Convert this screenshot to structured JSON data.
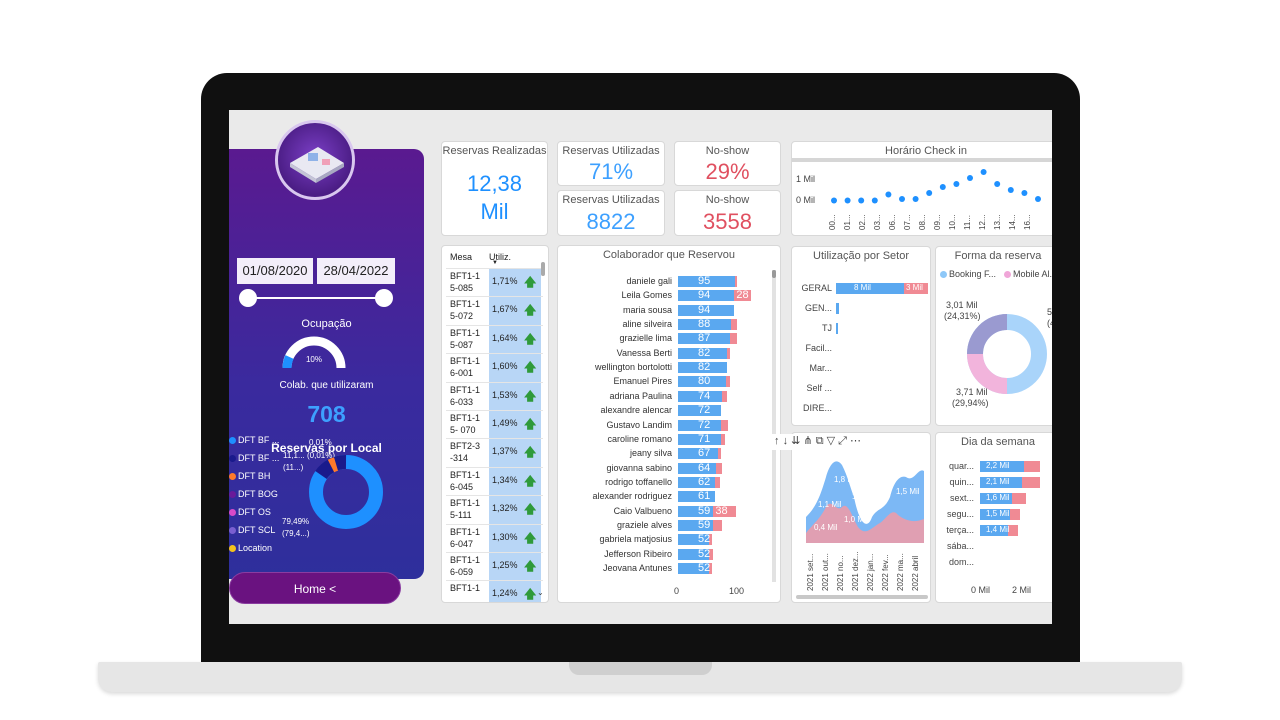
{
  "sidebar": {
    "date_start": "01/08/2020",
    "date_end": "28/04/2022",
    "ocupacao_label": "Ocupação",
    "ocupacao_value": "10%",
    "colab_label": "Colab. que utilizaram",
    "colab_value": "708",
    "reservas_local_label": "Reservas por Local",
    "legend": [
      {
        "label": "DFT BF ...",
        "color": "#1e90ff"
      },
      {
        "label": "DFT BF ...",
        "color": "#1a1a8c"
      },
      {
        "label": "DFT BH",
        "color": "#ff7a2a"
      },
      {
        "label": "DFT BOG",
        "color": "#6a1a9a"
      },
      {
        "label": "DFT OS",
        "color": "#d84ac8"
      },
      {
        "label": "DFT SCL",
        "color": "#7a5fd0"
      },
      {
        "label": "Location",
        "color": "#f4c21c"
      }
    ],
    "donut_labels": {
      "a": "0,01%",
      "b": "11,1...",
      "c": "(0,01%)",
      "d": "(11...)",
      "e": "79,49%",
      "f": "(79,4...)"
    },
    "home_label": "Home <"
  },
  "kpis": {
    "reservas_realizadas_title": "Reservas Realizadas",
    "reservas_realizadas_value": "12,38",
    "reservas_realizadas_unit": "Mil",
    "reservas_utilizadas_pct_title": "Reservas Utilizadas",
    "reservas_utilizadas_pct": "71%",
    "noshow_pct_title": "No-show",
    "noshow_pct": "29%",
    "reservas_utilizadas_num_title": "Reservas Utilizadas",
    "reservas_utilizadas_num": "8822",
    "noshow_num_title": "No-show",
    "noshow_num": "3558",
    "accent_blue": "#1e90ff",
    "accent_red": "#e05060"
  },
  "mesa_table": {
    "headers": [
      "Mesa",
      "Utiliz."
    ],
    "rows": [
      {
        "mesa1": "BFT1-1",
        "mesa2": "5-085",
        "util": "1,71%"
      },
      {
        "mesa1": "BFT1-1",
        "mesa2": "5-072",
        "util": "1,67%"
      },
      {
        "mesa1": "BFT1-1",
        "mesa2": "5-087",
        "util": "1,64%"
      },
      {
        "mesa1": "BFT1-1",
        "mesa2": "6-001",
        "util": "1,60%"
      },
      {
        "mesa1": "BFT1-1",
        "mesa2": "6-033",
        "util": "1,53%"
      },
      {
        "mesa1": "BFT1-1",
        "mesa2": "5- 070",
        "util": "1,49%"
      },
      {
        "mesa1": "BFT2-3",
        "mesa2": "-314",
        "util": "1,37%"
      },
      {
        "mesa1": "BFT1-1",
        "mesa2": "6-045",
        "util": "1,34%"
      },
      {
        "mesa1": "BFT1-1",
        "mesa2": "5-111",
        "util": "1,32%"
      },
      {
        "mesa1": "BFT1-1",
        "mesa2": "6-047",
        "util": "1,30%"
      },
      {
        "mesa1": "BFT1-1",
        "mesa2": "6-059",
        "util": "1,25%"
      },
      {
        "mesa1": "BFT1-1",
        "mesa2": "",
        "util": "1,24%"
      }
    ]
  },
  "collab": {
    "title": "Colaborador que Reservou",
    "axis": [
      "0",
      "100"
    ],
    "rows": [
      {
        "name": "daniele gali",
        "used": 95,
        "noshow": 4,
        "label": "95",
        "nslabel": ""
      },
      {
        "name": "Leila Gomes",
        "used": 94,
        "noshow": 28,
        "label": "94",
        "nslabel": "28"
      },
      {
        "name": "maria sousa",
        "used": 94,
        "noshow": 0,
        "label": "94",
        "nslabel": ""
      },
      {
        "name": "aline silveira",
        "used": 88,
        "noshow": 10,
        "label": "88",
        "nslabel": ""
      },
      {
        "name": "grazielle lima",
        "used": 87,
        "noshow": 12,
        "label": "87",
        "nslabel": ""
      },
      {
        "name": "Vanessa Berti",
        "used": 82,
        "noshow": 5,
        "label": "82",
        "nslabel": ""
      },
      {
        "name": "wellington bortolotti",
        "used": 82,
        "noshow": 0,
        "label": "82",
        "nslabel": ""
      },
      {
        "name": "Emanuel Pires",
        "used": 80,
        "noshow": 6,
        "label": "80",
        "nslabel": ""
      },
      {
        "name": "adriana Paulina",
        "used": 74,
        "noshow": 8,
        "label": "74",
        "nslabel": ""
      },
      {
        "name": "alexandre alencar",
        "used": 72,
        "noshow": 0,
        "label": "72",
        "nslabel": ""
      },
      {
        "name": "Gustavo Landim",
        "used": 72,
        "noshow": 11,
        "label": "72",
        "nslabel": ""
      },
      {
        "name": "caroline romano",
        "used": 71,
        "noshow": 7,
        "label": "71",
        "nslabel": ""
      },
      {
        "name": "jeany silva",
        "used": 67,
        "noshow": 5,
        "label": "67",
        "nslabel": ""
      },
      {
        "name": "giovanna sabino",
        "used": 64,
        "noshow": 10,
        "label": "64",
        "nslabel": ""
      },
      {
        "name": "rodrigo toffanello",
        "used": 62,
        "noshow": 8,
        "label": "62",
        "nslabel": ""
      },
      {
        "name": "alexander rodriguez",
        "used": 61,
        "noshow": 0,
        "label": "61",
        "nslabel": ""
      },
      {
        "name": "Caio Valbueno",
        "used": 59,
        "noshow": 38,
        "label": "59",
        "nslabel": "38"
      },
      {
        "name": "graziele alves",
        "used": 59,
        "noshow": 14,
        "label": "59",
        "nslabel": ""
      },
      {
        "name": "gabriela matjosius",
        "used": 52,
        "noshow": 4,
        "label": "52",
        "nslabel": ""
      },
      {
        "name": "Jefferson Ribeiro",
        "used": 52,
        "noshow": 6,
        "label": "52",
        "nslabel": ""
      },
      {
        "name": "Jeovana Antunes",
        "used": 52,
        "noshow": 4,
        "label": "52",
        "nslabel": ""
      }
    ]
  },
  "checkin": {
    "title": "Horário Check in",
    "y_labels": [
      "1 Mil",
      "0 Mil"
    ],
    "x_labels": [
      "00...",
      "01...",
      "02...",
      "03...",
      "06...",
      "07...",
      "08...",
      "09...",
      "10...",
      "11...",
      "12...",
      "13...",
      "14...",
      "16..."
    ]
  },
  "setor": {
    "title": "Utilização por Setor",
    "rows": [
      {
        "label": "GERAL",
        "used": 8,
        "noshow": 3,
        "ulabel": "8 Mil",
        "nlabel": "3 Mil"
      },
      {
        "label": "GEN...",
        "used": 0.3,
        "noshow": 0,
        "ulabel": "",
        "nlabel": ""
      },
      {
        "label": "TJ",
        "used": 0.2,
        "noshow": 0,
        "ulabel": "",
        "nlabel": ""
      },
      {
        "label": "Facil...",
        "used": 0,
        "noshow": 0,
        "ulabel": "",
        "nlabel": ""
      },
      {
        "label": "Mar...",
        "used": 0,
        "noshow": 0,
        "ulabel": "",
        "nlabel": ""
      },
      {
        "label": "Self ...",
        "used": 0,
        "noshow": 0,
        "ulabel": "",
        "nlabel": ""
      },
      {
        "label": "DIRE...",
        "used": 0,
        "noshow": 0,
        "ulabel": "",
        "nlabel": ""
      }
    ]
  },
  "forma": {
    "title": "Forma da reserva",
    "legend": [
      {
        "label": "Booking F...",
        "color": "#8ec8f8"
      },
      {
        "label": "Mobile Al...",
        "color": "#f0a6d8"
      }
    ],
    "label1a": "3,01 Mil",
    "label1b": "(24,31%)",
    "label2a": "3,71 Mil",
    "label2b": "(29,94%)",
    "label3a": "5",
    "label3b": "(4"
  },
  "timeline": {
    "labels": [
      "1,8 Mil",
      "1,5 Mil",
      "1,1 Mil",
      "1,0 Mil",
      "0,4 Mil",
      "1,5 Mil"
    ],
    "x_labels": [
      "2021 set...",
      "2021 out...",
      "2021 no...",
      "2021 dez...",
      "2022 jan...",
      "2022 fev...",
      "2022 ma...",
      "2022 abril"
    ]
  },
  "semana": {
    "title": "Dia da semana",
    "rows": [
      {
        "label": "quar...",
        "used": 2.2,
        "noshow": 0.8,
        "ulabel": "2,2 Mil"
      },
      {
        "label": "quin...",
        "used": 2.1,
        "noshow": 0.9,
        "ulabel": "2,1 Mil"
      },
      {
        "label": "sext...",
        "used": 1.6,
        "noshow": 0.7,
        "ulabel": "1,6 Mil"
      },
      {
        "label": "segu...",
        "used": 1.5,
        "noshow": 0.5,
        "ulabel": "1,5 Mil"
      },
      {
        "label": "terça...",
        "used": 1.4,
        "noshow": 0.5,
        "ulabel": "1,4 Mil"
      },
      {
        "label": "sába...",
        "used": 0,
        "noshow": 0,
        "ulabel": ""
      },
      {
        "label": "dom...",
        "used": 0,
        "noshow": 0,
        "ulabel": ""
      }
    ],
    "axis": [
      "0 Mil",
      "2 Mil"
    ]
  }
}
